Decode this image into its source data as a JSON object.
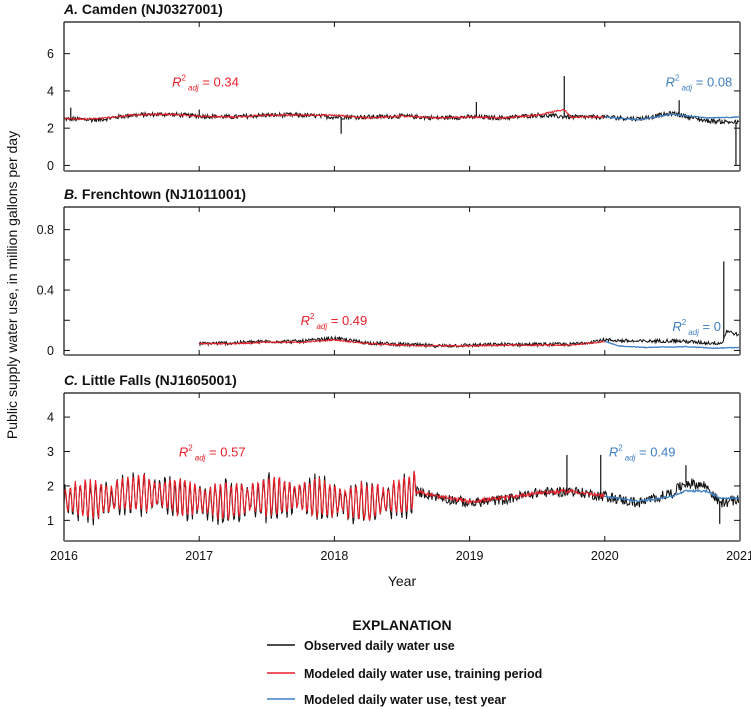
{
  "chart_data": {
    "type": "line",
    "ylabel": "Public supply water use, in million gallons per day",
    "xlabel": "Year",
    "x_ticks": [
      "2016",
      "2017",
      "2018",
      "2019",
      "2020",
      "2021"
    ],
    "xlim": [
      2016,
      2021
    ],
    "colors": {
      "observed": "#111111",
      "training": "#e8202a",
      "test": "#3f7fc4"
    },
    "panels": [
      {
        "letter": "A.",
        "title": "Camden (NJ0327001)",
        "ylim": [
          -0.3,
          7.7
        ],
        "y_ticks": [
          0,
          2,
          4,
          6
        ],
        "y_tick_labels": [
          "0",
          "2",
          "4",
          "6"
        ],
        "right_ticks": [
          0,
          2,
          4,
          6
        ],
        "observed_start": 2016.0,
        "training_period": [
          2016.0,
          2020.0
        ],
        "test_period": [
          2020.0,
          2021.0
        ],
        "annotations": [
          {
            "text_main": "R",
            "sup": "2",
            "sub": "adj",
            "value": " = 0.34",
            "series": "training",
            "x": 2016.8,
            "y": 4.25
          },
          {
            "text_main": "R",
            "sup": "2",
            "sub": "adj",
            "value": " = 0.08",
            "series": "test",
            "x": 2020.45,
            "y": 4.25
          }
        ],
        "series_profile": {
          "observed": [
            [
              2016.0,
              2.5
            ],
            [
              2016.25,
              2.45
            ],
            [
              2016.5,
              2.7
            ],
            [
              2016.75,
              2.75
            ],
            [
              2017.0,
              2.65
            ],
            [
              2017.25,
              2.6
            ],
            [
              2017.5,
              2.7
            ],
            [
              2017.75,
              2.7
            ],
            [
              2018.0,
              2.6
            ],
            [
              2018.25,
              2.6
            ],
            [
              2018.5,
              2.65
            ],
            [
              2018.75,
              2.55
            ],
            [
              2019.0,
              2.6
            ],
            [
              2019.25,
              2.55
            ],
            [
              2019.5,
              2.7
            ],
            [
              2019.75,
              2.6
            ],
            [
              2020.0,
              2.6
            ],
            [
              2020.25,
              2.5
            ],
            [
              2020.5,
              2.8
            ],
            [
              2020.75,
              2.4
            ],
            [
              2021.0,
              2.3
            ]
          ],
          "observed_spikes": [
            [
              2016.05,
              3.1
            ],
            [
              2017.0,
              3.0
            ],
            [
              2018.05,
              1.7
            ],
            [
              2019.05,
              3.4
            ],
            [
              2019.7,
              4.8
            ],
            [
              2020.55,
              3.5
            ],
            [
              2020.97,
              0.0
            ]
          ],
          "training": [
            [
              2016.0,
              2.5
            ],
            [
              2016.25,
              2.5
            ],
            [
              2016.5,
              2.7
            ],
            [
              2016.75,
              2.75
            ],
            [
              2017.0,
              2.65
            ],
            [
              2017.25,
              2.6
            ],
            [
              2017.5,
              2.7
            ],
            [
              2017.75,
              2.7
            ],
            [
              2018.0,
              2.7
            ],
            [
              2018.25,
              2.55
            ],
            [
              2018.5,
              2.65
            ],
            [
              2018.75,
              2.55
            ],
            [
              2019.0,
              2.6
            ],
            [
              2019.25,
              2.55
            ],
            [
              2019.5,
              2.7
            ],
            [
              2019.7,
              3.0
            ],
            [
              2019.75,
              2.6
            ],
            [
              2020.0,
              2.6
            ]
          ],
          "test": [
            [
              2020.0,
              2.6
            ],
            [
              2020.25,
              2.45
            ],
            [
              2020.5,
              2.75
            ],
            [
              2020.75,
              2.55
            ],
            [
              2021.0,
              2.6
            ]
          ],
          "noise": 0.12
        }
      },
      {
        "letter": "B.",
        "title": "Frenchtown (NJ1011001)",
        "ylim": [
          -0.03,
          0.95
        ],
        "y_ticks": [
          0,
          0.4,
          0.8
        ],
        "y_tick_labels": [
          "0",
          "0.4",
          "0.8"
        ],
        "right_ticks": [
          0,
          0.2,
          0.4,
          0.6,
          0.8
        ],
        "left_minor_ticks": [
          0.2,
          0.6
        ],
        "observed_start": 2017.0,
        "training_period": [
          2017.0,
          2020.0
        ],
        "test_period": [
          2020.0,
          2021.0
        ],
        "annotations": [
          {
            "text_main": "R",
            "sup": "2",
            "sub": "adj",
            "value": " = 0.49",
            "series": "training",
            "x": 2017.75,
            "y": 0.17
          },
          {
            "text_main": "R",
            "sup": "2",
            "sub": "adj",
            "value": " = 0",
            "series": "test",
            "x": 2020.5,
            "y": 0.13
          }
        ],
        "series_profile": {
          "observed": [
            [
              2017.0,
              0.045
            ],
            [
              2017.25,
              0.05
            ],
            [
              2017.5,
              0.06
            ],
            [
              2017.75,
              0.06
            ],
            [
              2018.0,
              0.08
            ],
            [
              2018.25,
              0.05
            ],
            [
              2018.5,
              0.04
            ],
            [
              2018.75,
              0.03
            ],
            [
              2019.0,
              0.035
            ],
            [
              2019.25,
              0.04
            ],
            [
              2019.5,
              0.04
            ],
            [
              2019.75,
              0.04
            ],
            [
              2020.0,
              0.07
            ],
            [
              2020.25,
              0.06
            ],
            [
              2020.5,
              0.065
            ],
            [
              2020.75,
              0.05
            ],
            [
              2020.87,
              0.05
            ],
            [
              2020.9,
              0.13
            ],
            [
              2021.0,
              0.1
            ]
          ],
          "observed_spikes": [
            [
              2020.88,
              0.59
            ]
          ],
          "training": [
            [
              2017.0,
              0.045
            ],
            [
              2017.25,
              0.045
            ],
            [
              2017.5,
              0.055
            ],
            [
              2017.75,
              0.055
            ],
            [
              2018.0,
              0.07
            ],
            [
              2018.25,
              0.045
            ],
            [
              2018.5,
              0.035
            ],
            [
              2018.75,
              0.03
            ],
            [
              2019.0,
              0.03
            ],
            [
              2019.25,
              0.035
            ],
            [
              2019.5,
              0.035
            ],
            [
              2019.75,
              0.035
            ],
            [
              2020.0,
              0.06
            ]
          ],
          "test": [
            [
              2020.0,
              0.06
            ],
            [
              2020.1,
              0.03
            ],
            [
              2020.3,
              0.02
            ],
            [
              2020.6,
              0.025
            ],
            [
              2020.8,
              0.015
            ],
            [
              2021.0,
              0.02
            ]
          ],
          "noise": 0.012
        }
      },
      {
        "letter": "C.",
        "title": "Little Falls (NJ1605001)",
        "ylim": [
          0.4,
          4.7
        ],
        "y_ticks": [
          1,
          2,
          3,
          4
        ],
        "y_tick_labels": [
          "1",
          "2",
          "3",
          "4"
        ],
        "right_ticks": [
          1,
          2,
          3,
          4
        ],
        "observed_start": 2016.0,
        "training_period": [
          2016.0,
          2020.0
        ],
        "test_period": [
          2020.0,
          2021.0
        ],
        "annotations": [
          {
            "text_main": "R",
            "sup": "2",
            "sub": "adj",
            "value": " = 0.57",
            "series": "training",
            "x": 2016.85,
            "y": 2.85
          },
          {
            "text_main": "R",
            "sup": "2",
            "sub": "adj",
            "value": " = 0.49",
            "series": "test",
            "x": 2020.03,
            "y": 2.85
          }
        ],
        "series_profile": {
          "observed": [
            [
              2016.0,
              1.6
            ],
            [
              2016.25,
              1.6
            ],
            [
              2016.5,
              1.8
            ],
            [
              2016.75,
              1.75
            ],
            [
              2017.0,
              1.6
            ],
            [
              2017.25,
              1.55
            ],
            [
              2017.5,
              1.7
            ],
            [
              2017.75,
              1.7
            ],
            [
              2018.0,
              1.6
            ],
            [
              2018.25,
              1.5
            ],
            [
              2018.5,
              1.7
            ],
            [
              2018.6,
              1.85
            ],
            [
              2018.75,
              1.7
            ],
            [
              2019.0,
              1.5
            ],
            [
              2019.25,
              1.6
            ],
            [
              2019.5,
              1.8
            ],
            [
              2019.75,
              1.85
            ],
            [
              2020.0,
              1.7
            ],
            [
              2020.25,
              1.5
            ],
            [
              2020.5,
              1.8
            ],
            [
              2020.6,
              2.1
            ],
            [
              2020.75,
              2.0
            ],
            [
              2020.85,
              1.5
            ],
            [
              2021.0,
              1.6
            ]
          ],
          "observed_spikes": [
            [
              2019.72,
              2.9
            ],
            [
              2019.97,
              2.9
            ],
            [
              2020.6,
              2.6
            ],
            [
              2020.85,
              0.9
            ]
          ],
          "training": [
            [
              2016.0,
              1.6
            ],
            [
              2016.25,
              1.6
            ],
            [
              2016.5,
              1.8
            ],
            [
              2016.75,
              1.75
            ],
            [
              2017.0,
              1.6
            ],
            [
              2017.25,
              1.55
            ],
            [
              2017.5,
              1.7
            ],
            [
              2017.75,
              1.7
            ],
            [
              2018.0,
              1.6
            ],
            [
              2018.25,
              1.5
            ],
            [
              2018.5,
              1.7
            ],
            [
              2018.6,
              1.85
            ],
            [
              2018.75,
              1.7
            ],
            [
              2019.0,
              1.55
            ],
            [
              2019.25,
              1.65
            ],
            [
              2019.5,
              1.8
            ],
            [
              2019.75,
              1.85
            ],
            [
              2020.0,
              1.7
            ]
          ],
          "test": [
            [
              2020.0,
              1.7
            ],
            [
              2020.25,
              1.55
            ],
            [
              2020.5,
              1.7
            ],
            [
              2020.6,
              1.85
            ],
            [
              2020.75,
              1.85
            ],
            [
              2020.85,
              1.65
            ],
            [
              2021.0,
              1.65
            ]
          ],
          "oscillating_until": 2018.6,
          "noise": 0.15
        }
      }
    ],
    "legend": {
      "title": "EXPLANATION",
      "position": "bottom-center",
      "entries": [
        {
          "label": "Observed daily water use",
          "series": "observed"
        },
        {
          "label": "Modeled daily water use, training period",
          "series": "training"
        },
        {
          "label": "Modeled daily water use, test year",
          "series": "test"
        }
      ]
    }
  }
}
